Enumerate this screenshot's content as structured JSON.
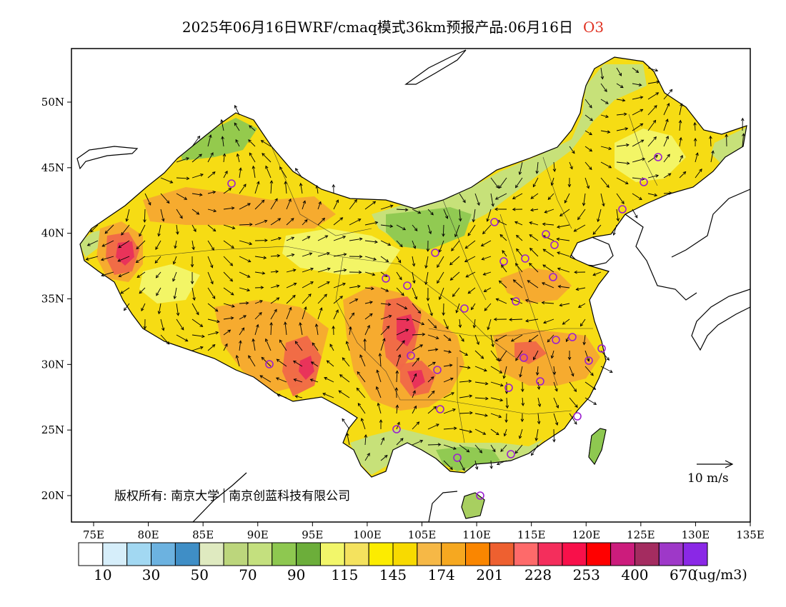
{
  "title": {
    "text": "2025年06月16日WRF/cmaq模式36km预报产品:06月16日",
    "pollutant": "O3"
  },
  "axes": {
    "lon_labels": [
      "75E",
      "80E",
      "85E",
      "90E",
      "95E",
      "100E",
      "105E",
      "110E",
      "115E",
      "120E",
      "125E",
      "130E",
      "135E"
    ],
    "lat_labels": [
      "20N",
      "25N",
      "30N",
      "35N",
      "40N",
      "45N",
      "50N"
    ]
  },
  "copyright": {
    "prefix": "版权所有: 南京大学",
    "company": "南京创蓝科技有限公司"
  },
  "wind_reference": {
    "label": "10 m/s"
  },
  "legend": {
    "colors": [
      "#ffffff",
      "#d6eefa",
      "#a2d8f2",
      "#6cb2e0",
      "#3f8ec6",
      "#dfeac0",
      "#bcd67c",
      "#c4e07e",
      "#8ec850",
      "#6cae3a",
      "#f2f66a",
      "#f4e25e",
      "#fcec00",
      "#f8da00",
      "#f6b846",
      "#f6a820",
      "#fa8600",
      "#ee6030",
      "#fe6a6a",
      "#f42e5c",
      "#f8104a",
      "#ff0000",
      "#cc1c7c",
      "#a42c60",
      "#9e38c8",
      "#8a28e6"
    ],
    "labels": [
      "10",
      "30",
      "50",
      "70",
      "90",
      "115",
      "145",
      "174",
      "201",
      "228",
      "253",
      "400",
      "670"
    ],
    "unit": "(ug/m3)"
  },
  "map_colors": {
    "ocean": "#ffffff",
    "base": "#f6dc14",
    "high": "#f6a830",
    "very_high": "#f06848",
    "peak": "#e8305c",
    "low_green": "#8ec850",
    "light_green": "#c4e07e",
    "light_yellow": "#f2f66a",
    "station": "#9a20d0"
  }
}
